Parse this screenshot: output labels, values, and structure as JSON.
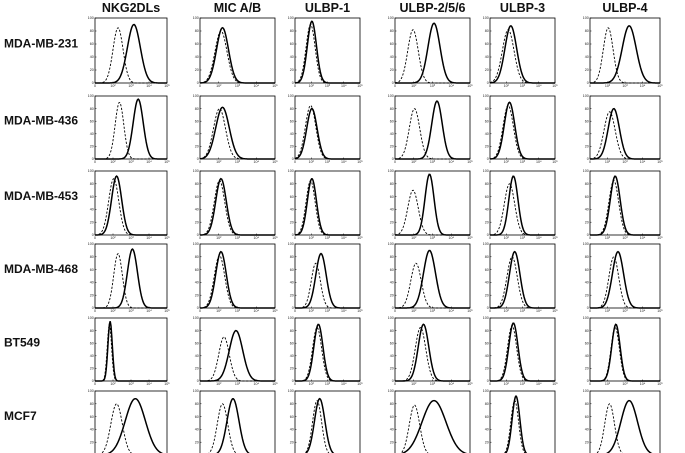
{
  "columns": [
    "NKG2DLs",
    "MIC A/B",
    "ULBP-1",
    "ULBP-2/5/6",
    "ULBP-3",
    "ULBP-4"
  ],
  "rows": [
    "MDA-MB-231",
    "MDA-MB-436",
    "MDA-MB-453",
    "MDA-MB-468",
    "BT549",
    "MCF7"
  ],
  "y_ticks": [
    "100",
    "80",
    "60",
    "40",
    "20",
    "0"
  ],
  "x_ticks": [
    "0",
    "10²",
    "10³",
    "10⁴",
    "10⁵"
  ],
  "chart_data": {
    "type": "histogram-grid",
    "description_axis": "x: fluorescence intensity (log scale), y: % of max",
    "xlim": [
      0,
      5
    ],
    "ylim": [
      0,
      100
    ],
    "series_styles": [
      {
        "role": "isotype",
        "style": "dashed"
      },
      {
        "role": "stain",
        "style": "solid"
      }
    ],
    "panels": [
      {
        "row": "MDA-MB-231",
        "column": "NKG2DLs",
        "isotype": {
          "peak_log": 1.6,
          "width": 0.35,
          "height": 85
        },
        "stain": {
          "peak_log": 2.7,
          "width": 0.45,
          "height": 90
        }
      },
      {
        "row": "MDA-MB-231",
        "column": "MIC A/B",
        "isotype": {
          "peak_log": 1.4,
          "width": 0.4,
          "height": 80
        },
        "stain": {
          "peak_log": 1.5,
          "width": 0.4,
          "height": 85
        }
      },
      {
        "row": "MDA-MB-231",
        "column": "ULBP-1",
        "isotype": {
          "peak_log": 1.2,
          "width": 0.35,
          "height": 90
        },
        "stain": {
          "peak_log": 1.3,
          "width": 0.35,
          "height": 95
        }
      },
      {
        "row": "MDA-MB-231",
        "column": "ULBP-2/5/6",
        "isotype": {
          "peak_log": 1.2,
          "width": 0.35,
          "height": 82
        },
        "stain": {
          "peak_log": 2.6,
          "width": 0.4,
          "height": 92
        }
      },
      {
        "row": "MDA-MB-231",
        "column": "ULBP-3",
        "isotype": {
          "peak_log": 1.4,
          "width": 0.45,
          "height": 82
        },
        "stain": {
          "peak_log": 1.6,
          "width": 0.45,
          "height": 88
        }
      },
      {
        "row": "MDA-MB-231",
        "column": "ULBP-4",
        "isotype": {
          "peak_log": 1.3,
          "width": 0.35,
          "height": 85
        },
        "stain": {
          "peak_log": 2.8,
          "width": 0.5,
          "height": 88
        }
      },
      {
        "row": "MDA-MB-436",
        "column": "NKG2DLs",
        "isotype": {
          "peak_log": 1.7,
          "width": 0.3,
          "height": 90
        },
        "stain": {
          "peak_log": 3.0,
          "width": 0.35,
          "height": 95
        }
      },
      {
        "row": "MDA-MB-436",
        "column": "MIC A/B",
        "isotype": {
          "peak_log": 1.3,
          "width": 0.4,
          "height": 80
        },
        "stain": {
          "peak_log": 1.5,
          "width": 0.45,
          "height": 82
        }
      },
      {
        "row": "MDA-MB-436",
        "column": "ULBP-1",
        "isotype": {
          "peak_log": 1.2,
          "width": 0.4,
          "height": 85
        },
        "stain": {
          "peak_log": 1.3,
          "width": 0.4,
          "height": 80
        }
      },
      {
        "row": "MDA-MB-436",
        "column": "ULBP-2/5/6",
        "isotype": {
          "peak_log": 1.3,
          "width": 0.35,
          "height": 80
        },
        "stain": {
          "peak_log": 2.8,
          "width": 0.35,
          "height": 92
        }
      },
      {
        "row": "MDA-MB-436",
        "column": "ULBP-3",
        "isotype": {
          "peak_log": 1.4,
          "width": 0.4,
          "height": 85
        },
        "stain": {
          "peak_log": 1.5,
          "width": 0.4,
          "height": 90
        }
      },
      {
        "row": "MDA-MB-436",
        "column": "ULBP-4",
        "isotype": {
          "peak_log": 1.4,
          "width": 0.4,
          "height": 75
        },
        "stain": {
          "peak_log": 1.7,
          "width": 0.4,
          "height": 80
        }
      },
      {
        "row": "MDA-MB-453",
        "column": "NKG2DLs",
        "isotype": {
          "peak_log": 1.3,
          "width": 0.35,
          "height": 88
        },
        "stain": {
          "peak_log": 1.5,
          "width": 0.35,
          "height": 92
        }
      },
      {
        "row": "MDA-MB-453",
        "column": "MIC A/B",
        "isotype": {
          "peak_log": 1.3,
          "width": 0.35,
          "height": 85
        },
        "stain": {
          "peak_log": 1.4,
          "width": 0.35,
          "height": 88
        }
      },
      {
        "row": "MDA-MB-453",
        "column": "ULBP-1",
        "isotype": {
          "peak_log": 1.2,
          "width": 0.35,
          "height": 85
        },
        "stain": {
          "peak_log": 1.3,
          "width": 0.35,
          "height": 88
        }
      },
      {
        "row": "MDA-MB-453",
        "column": "ULBP-2/5/6",
        "isotype": {
          "peak_log": 1.2,
          "width": 0.35,
          "height": 70
        },
        "stain": {
          "peak_log": 2.3,
          "width": 0.3,
          "height": 95
        }
      },
      {
        "row": "MDA-MB-453",
        "column": "ULBP-3",
        "isotype": {
          "peak_log": 1.5,
          "width": 0.4,
          "height": 80
        },
        "stain": {
          "peak_log": 1.8,
          "width": 0.35,
          "height": 92
        }
      },
      {
        "row": "MDA-MB-453",
        "column": "ULBP-4",
        "isotype": {
          "peak_log": 1.7,
          "width": 0.35,
          "height": 85
        },
        "stain": {
          "peak_log": 1.8,
          "width": 0.35,
          "height": 92
        }
      },
      {
        "row": "MDA-MB-468",
        "column": "NKG2DLs",
        "isotype": {
          "peak_log": 1.6,
          "width": 0.3,
          "height": 85
        },
        "stain": {
          "peak_log": 2.6,
          "width": 0.35,
          "height": 92
        }
      },
      {
        "row": "MDA-MB-468",
        "column": "MIC A/B",
        "isotype": {
          "peak_log": 1.3,
          "width": 0.35,
          "height": 82
        },
        "stain": {
          "peak_log": 1.4,
          "width": 0.35,
          "height": 88
        }
      },
      {
        "row": "MDA-MB-468",
        "column": "ULBP-1",
        "isotype": {
          "peak_log": 1.6,
          "width": 0.35,
          "height": 70
        },
        "stain": {
          "peak_log": 2.0,
          "width": 0.4,
          "height": 85
        }
      },
      {
        "row": "MDA-MB-468",
        "column": "ULBP-2/5/6",
        "isotype": {
          "peak_log": 1.4,
          "width": 0.35,
          "height": 70
        },
        "stain": {
          "peak_log": 2.3,
          "width": 0.4,
          "height": 90
        }
      },
      {
        "row": "MDA-MB-468",
        "column": "ULBP-3",
        "isotype": {
          "peak_log": 1.7,
          "width": 0.4,
          "height": 80
        },
        "stain": {
          "peak_log": 1.9,
          "width": 0.4,
          "height": 88
        }
      },
      {
        "row": "MDA-MB-468",
        "column": "ULBP-4",
        "isotype": {
          "peak_log": 1.7,
          "width": 0.35,
          "height": 80
        },
        "stain": {
          "peak_log": 2.0,
          "width": 0.4,
          "height": 88
        }
      },
      {
        "row": "BT549",
        "column": "NKG2DLs",
        "isotype": {
          "peak_log": 1.0,
          "width": 0.15,
          "height": 90
        },
        "stain": {
          "peak_log": 1.05,
          "width": 0.15,
          "height": 95
        }
      },
      {
        "row": "BT549",
        "column": "MIC A/B",
        "isotype": {
          "peak_log": 1.6,
          "width": 0.35,
          "height": 70
        },
        "stain": {
          "peak_log": 2.4,
          "width": 0.45,
          "height": 80
        }
      },
      {
        "row": "BT549",
        "column": "ULBP-1",
        "isotype": {
          "peak_log": 1.7,
          "width": 0.35,
          "height": 85
        },
        "stain": {
          "peak_log": 1.8,
          "width": 0.35,
          "height": 90
        }
      },
      {
        "row": "BT549",
        "column": "ULBP-2/5/6",
        "isotype": {
          "peak_log": 1.7,
          "width": 0.35,
          "height": 85
        },
        "stain": {
          "peak_log": 1.9,
          "width": 0.35,
          "height": 90
        }
      },
      {
        "row": "BT549",
        "column": "ULBP-3",
        "isotype": {
          "peak_log": 1.7,
          "width": 0.35,
          "height": 88
        },
        "stain": {
          "peak_log": 1.8,
          "width": 0.35,
          "height": 92
        }
      },
      {
        "row": "BT549",
        "column": "ULBP-4",
        "isotype": {
          "peak_log": 1.8,
          "width": 0.3,
          "height": 85
        },
        "stain": {
          "peak_log": 1.85,
          "width": 0.3,
          "height": 90
        }
      },
      {
        "row": "MCF7",
        "column": "NKG2DLs",
        "isotype": {
          "peak_log": 1.5,
          "width": 0.4,
          "height": 80
        },
        "stain": {
          "peak_log": 2.8,
          "width": 0.7,
          "height": 88
        }
      },
      {
        "row": "MCF7",
        "column": "MIC A/B",
        "isotype": {
          "peak_log": 1.5,
          "width": 0.35,
          "height": 80
        },
        "stain": {
          "peak_log": 2.2,
          "width": 0.4,
          "height": 88
        }
      },
      {
        "row": "MCF7",
        "column": "ULBP-1",
        "isotype": {
          "peak_log": 1.7,
          "width": 0.35,
          "height": 85
        },
        "stain": {
          "peak_log": 1.9,
          "width": 0.4,
          "height": 88
        }
      },
      {
        "row": "MCF7",
        "column": "ULBP-2/5/6",
        "isotype": {
          "peak_log": 1.3,
          "width": 0.35,
          "height": 78
        },
        "stain": {
          "peak_log": 2.6,
          "width": 0.8,
          "height": 85
        }
      },
      {
        "row": "MCF7",
        "column": "ULBP-3",
        "isotype": {
          "peak_log": 1.9,
          "width": 0.3,
          "height": 85
        },
        "stain": {
          "peak_log": 2.0,
          "width": 0.3,
          "height": 92
        }
      },
      {
        "row": "MCF7",
        "column": "ULBP-4",
        "isotype": {
          "peak_log": 1.4,
          "width": 0.35,
          "height": 80
        },
        "stain": {
          "peak_log": 2.8,
          "width": 0.6,
          "height": 85
        }
      }
    ]
  }
}
